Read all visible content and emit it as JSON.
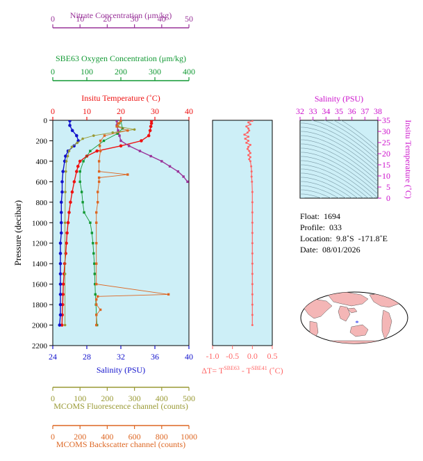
{
  "float_info": {
    "float_line": "Float:  1694",
    "profile_line": "Profile:  033",
    "location_line": "Location:  9.8˚S  -171.8˚E",
    "date_line": "Date:  08/01/2026"
  },
  "chart_data": [
    {
      "type": "line",
      "ylabel": "Pressure (decibar)",
      "ylim": [
        2200,
        0
      ],
      "yticks": [
        "0",
        "200",
        "400",
        "600",
        "800",
        "1000",
        "1200",
        "1400",
        "1600",
        "1800",
        "2000",
        "2200"
      ],
      "grid": false,
      "axes": {
        "nitrate": {
          "label": "Nitrate Concentration (μm/kg)",
          "range": [
            0,
            50
          ],
          "ticks": [
            "0",
            "10",
            "20",
            "30",
            "40",
            "50"
          ],
          "color": "#993399"
        },
        "oxygen": {
          "label": "SBE63 Oxygen Concentration (μm/kg)",
          "range": [
            0,
            400
          ],
          "ticks": [
            "0",
            "100",
            "200",
            "300",
            "400"
          ],
          "color": "#119933"
        },
        "temperature": {
          "label": "Insitu Temperature (˚C)",
          "range": [
            0,
            40
          ],
          "ticks": [
            "0",
            "10",
            "20",
            "30",
            "40"
          ],
          "color": "#ee1111"
        },
        "salinity": {
          "label": "Salinity (PSU)",
          "range": [
            24,
            40
          ],
          "ticks": [
            "24",
            "28",
            "32",
            "36",
            "40"
          ],
          "color": "#1111cc"
        },
        "fluorescence": {
          "label": "MCOMS Fluorescence channel (counts)",
          "range": [
            0,
            500
          ],
          "ticks": [
            "0",
            "100",
            "200",
            "300",
            "400",
            "500"
          ],
          "color": "#999933"
        },
        "backscatter": {
          "label": "MCOMS Backscatter channel (counts)",
          "range": [
            0,
            1000
          ],
          "ticks": [
            "0",
            "200",
            "400",
            "600",
            "800",
            "1000"
          ],
          "color": "#dd6622"
        }
      },
      "series": [
        {
          "key": "temperature",
          "color": "#ee1111",
          "pressure": [
            5,
            30,
            60,
            100,
            150,
            200,
            250,
            300,
            350,
            400,
            450,
            500,
            600,
            700,
            800,
            900,
            1000,
            1100,
            1200,
            1300,
            1400,
            1500,
            1600,
            1700,
            1800,
            1900,
            2000
          ],
          "values": [
            29,
            29,
            28.8,
            28.6,
            28.2,
            26,
            20,
            13,
            10,
            8,
            7.4,
            7,
            6.3,
            5.7,
            5.2,
            4.8,
            4.5,
            4.2,
            4,
            3.8,
            3.5,
            3.3,
            3.1,
            3,
            2.9,
            2.8,
            2.7
          ]
        },
        {
          "key": "salinity",
          "color": "#1111cc",
          "pressure": [
            5,
            50,
            100,
            150,
            200,
            250,
            300,
            350,
            400,
            500,
            600,
            700,
            800,
            900,
            1000,
            1100,
            1200,
            1300,
            1400,
            1500,
            1600,
            1700,
            1800,
            1900,
            2000
          ],
          "values": [
            26,
            26,
            26.3,
            26.8,
            27,
            26.5,
            25.8,
            25.5,
            25.4,
            25.2,
            25.1,
            25.1,
            25,
            25,
            25,
            25,
            24.9,
            24.9,
            24.9,
            24.9,
            24.9,
            24.9,
            24.9,
            24.9,
            24.8
          ]
        },
        {
          "key": "nitrate",
          "color": "#993399",
          "pressure": [
            5,
            50,
            100,
            150,
            200,
            250,
            300,
            350,
            400,
            450,
            500,
            550,
            600
          ],
          "values": [
            23.5,
            23.5,
            24,
            24.5,
            25,
            28,
            32,
            36,
            40,
            43,
            46,
            48,
            49.5
          ]
        },
        {
          "key": "oxygen",
          "color": "#119933",
          "pressure": [
            5,
            80,
            130,
            200,
            300,
            400,
            500,
            600,
            700,
            800,
            900,
            1000,
            1100,
            1200,
            1300,
            1400,
            1500,
            1600,
            1700,
            1800,
            1900,
            2000
          ],
          "values": [
            200,
            205,
            190,
            150,
            110,
            90,
            80,
            80,
            85,
            88,
            92,
            110,
            115,
            118,
            120,
            122,
            123,
            124,
            125,
            127,
            128,
            130
          ]
        },
        {
          "key": "fluorescence",
          "color": "#999933",
          "pressure": [
            5,
            30,
            60,
            90,
            120,
            150,
            180,
            220,
            260,
            300,
            350,
            400,
            500,
            700,
            1000,
            1500,
            2000
          ],
          "values": [
            250,
            245,
            240,
            300,
            220,
            150,
            110,
            90,
            70,
            60,
            55,
            50,
            48,
            46,
            45,
            45,
            45
          ]
        },
        {
          "key": "backscatter",
          "color": "#dd6622",
          "pressure": [
            5,
            30,
            60,
            100,
            150,
            200,
            250,
            300,
            400,
            500,
            530,
            560,
            600,
            700,
            800,
            900,
            1000,
            1200,
            1400,
            1600,
            1700,
            1720,
            1750,
            1800,
            1850,
            1900,
            2000
          ],
          "values": [
            500,
            480,
            470,
            550,
            380,
            350,
            345,
            350,
            340,
            340,
            550,
            340,
            340,
            330,
            330,
            320,
            320,
            320,
            320,
            320,
            850,
            330,
            320,
            320,
            350,
            320,
            320
          ]
        }
      ]
    },
    {
      "type": "line",
      "xlabel": "ΔT= T",
      "xlabel_sup1": "SBE63",
      "xlabel_mid": " - T",
      "xlabel_sup2": "SBE41",
      "xlabel_unit": " (˚C)",
      "xlim": [
        -1.0,
        0.5
      ],
      "xticks": [
        "-1.0",
        "-0.5",
        "0.0",
        "0.5"
      ],
      "ylim": [
        2200,
        0
      ],
      "color": "#ff6666",
      "pressure": [
        5,
        20,
        40,
        60,
        80,
        100,
        120,
        140,
        160,
        180,
        200,
        220,
        240,
        260,
        280,
        300,
        320,
        340,
        360,
        380,
        400,
        450,
        500,
        550,
        600,
        700,
        800,
        900,
        1000,
        1100,
        1200,
        1300,
        1400,
        1500,
        1600,
        1700,
        1800,
        1900,
        2000
      ],
      "values": [
        0.0,
        -0.1,
        -0.05,
        -0.15,
        -0.1,
        -0.08,
        -0.12,
        -0.2,
        -0.1,
        -0.18,
        -0.1,
        -0.15,
        -0.05,
        -0.1,
        -0.12,
        -0.08,
        -0.05,
        -0.1,
        -0.05,
        -0.08,
        -0.05,
        -0.03,
        -0.02,
        -0.02,
        -0.01,
        0.0,
        0.0,
        0.0,
        0.0,
        0.0,
        0.0,
        0.0,
        0.0,
        0.0,
        0.0,
        0.0,
        0.0,
        0.0,
        0.0
      ]
    },
    {
      "type": "scatter",
      "title": "Salinity (PSU)",
      "ylabel": "Insitu Temperature (˚C)",
      "xticks": [
        "32",
        "33",
        "34",
        "35",
        "36",
        "37",
        "38"
      ],
      "yticks": [
        "0",
        "5",
        "10",
        "15",
        "20",
        "25",
        "30",
        "35"
      ],
      "xlim": [
        32,
        38
      ],
      "ylim": [
        0,
        35
      ],
      "color": "#cc11cc"
    },
    {
      "type": "map",
      "marker": {
        "lat": -9.8,
        "lon": -171.8,
        "color": "#1122ee"
      }
    }
  ]
}
